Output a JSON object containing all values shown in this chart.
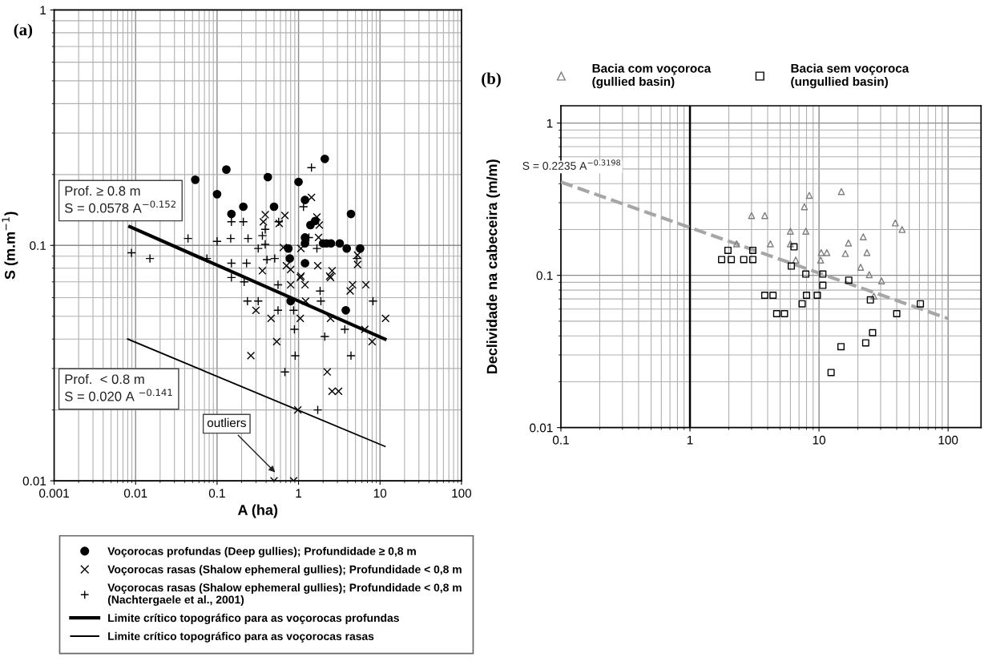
{
  "chart_data": [
    {
      "type": "scatter",
      "title": "(a)",
      "xlabel": "A (ha)",
      "ylabel": "S (m.m$^{−1}$)",
      "log": "xy",
      "xlim": [
        0.001,
        100
      ],
      "ylim": [
        0.01,
        1
      ],
      "xticks": [
        0.001,
        0.01,
        0.1,
        1,
        10,
        100
      ],
      "yticks": [
        0.01,
        0.1,
        1
      ],
      "grid": true,
      "legend": "bottom",
      "annotations": [
        "Prof. ≥ 0.8 m\nS = 0.0578 A$^{−0.152}$",
        "Prof.  < 0.8 m\nS = 0.020 A $^{−0.141}$",
        {
          "text": "outliers",
          "x": 0.54,
          "y": 0.0107
        }
      ],
      "series": [
        {
          "name": "Voçorocas profundas (Deep gullies); Profundidade ≥ 0,8 m",
          "type": "scatter",
          "marker": "circle",
          "color": "#000000",
          "x": [
            0.054,
            0.1,
            0.13,
            0.21,
            0.15,
            0.42,
            0.5,
            1.0,
            2.1,
            1.2,
            4.4,
            1.4,
            1.6,
            1.2,
            1.2,
            2.0,
            2.2,
            2.5,
            3.2,
            3.9,
            5.7,
            0.75,
            0.78,
            1.2,
            0.8,
            3.8
          ],
          "values": [
            0.19,
            0.165,
            0.21,
            0.146,
            0.136,
            0.195,
            0.146,
            0.186,
            0.233,
            0.156,
            0.136,
            0.122,
            0.127,
            0.108,
            0.102,
            0.102,
            0.102,
            0.102,
            0.102,
            0.097,
            0.097,
            0.097,
            0.088,
            0.084,
            0.058,
            0.053
          ]
        },
        {
          "name": "Voçorocas rasas (Shalow ephemeral gullies); Profundidade < 0,8 m",
          "type": "scatter",
          "marker": "cross",
          "color": "#000000",
          "x": [
            1.44,
            0.39,
            0.37,
            0.68,
            0.58,
            1.68,
            1.8,
            1.76,
            0.36,
            0.8,
            1.07,
            1.72,
            2.58,
            2.41,
            5.3,
            5.3,
            1.07,
            0.65,
            0.71,
            1.05,
            0.8,
            1.2,
            2.47,
            4.6,
            6.7,
            4.3,
            1.22,
            0.3,
            0.46,
            1.05,
            2.47,
            11.7,
            6.5,
            8.0,
            0.54,
            0.26,
            2.25,
            2.58,
            3.1,
            0.98,
            0.5,
            0.87
          ],
          "values": [
            0.16,
            0.135,
            0.126,
            0.134,
            0.124,
            0.132,
            0.122,
            0.108,
            0.078,
            0.079,
            0.074,
            0.082,
            0.078,
            0.074,
            0.083,
            0.091,
            0.097,
            0.098,
            0.082,
            0.073,
            0.068,
            0.068,
            0.073,
            0.068,
            0.068,
            0.064,
            0.058,
            0.053,
            0.049,
            0.049,
            0.049,
            0.049,
            0.044,
            0.039,
            0.039,
            0.034,
            0.029,
            0.024,
            0.024,
            0.02,
            0.01,
            0.01
          ]
        },
        {
          "name": "Voçorocas rasas (Shalow ephemeral gullies); Profundidade < 0,8 m\n(Nachtergaele et al., 2001)",
          "type": "scatter",
          "marker": "plus",
          "color": "#000000",
          "x": [
            0.0089,
            0.015,
            0.044,
            0.1,
            0.147,
            0.24,
            0.15,
            0.21,
            0.075,
            0.15,
            0.23,
            0.36,
            0.41,
            1.44,
            1.15,
            0.39,
            0.39,
            0.32,
            0.51,
            0.57,
            1.68,
            1.34,
            5.2,
            0.15,
            0.215,
            0.56,
            0.236,
            0.32,
            0.56,
            0.87,
            1.84,
            1.88,
            8.2,
            0.89,
            2.1,
            3.7,
            0.91,
            4.4,
            0.68,
            1.72
          ],
          "values": [
            0.093,
            0.088,
            0.107,
            0.104,
            0.107,
            0.107,
            0.126,
            0.126,
            0.088,
            0.084,
            0.084,
            0.11,
            0.087,
            0.214,
            0.146,
            0.117,
            0.101,
            0.097,
            0.088,
            0.126,
            0.097,
            0.108,
            0.088,
            0.073,
            0.07,
            0.068,
            0.058,
            0.058,
            0.053,
            0.053,
            0.064,
            0.058,
            0.058,
            0.044,
            0.041,
            0.044,
            0.034,
            0.034,
            0.029,
            0.02
          ]
        },
        {
          "name": "Limite crítico topográfico para as voçorocas profundas",
          "type": "line",
          "marker": "none",
          "line_style": "solid",
          "color": "#000000",
          "x": [
            0.0085,
            11.5
          ],
          "values": [
            0.12,
            0.04
          ]
        },
        {
          "name": "Limite crítico topográfico para as voçorocas rasas",
          "type": "line",
          "marker": "none",
          "line_style": "solid",
          "color": "#000000",
          "x": [
            0.008,
            11.5
          ],
          "values": [
            0.04,
            0.014
          ]
        }
      ]
    },
    {
      "type": "scatter",
      "title": "(b)",
      "ylabel": "Declividade na cabeceira (m/m)",
      "log": "xy",
      "xlim": [
        0.1,
        180
      ],
      "ylim": [
        0.01,
        1.3
      ],
      "xticks": [
        0.1,
        1,
        10,
        100
      ],
      "yticks": [
        0.01,
        0.1,
        1
      ],
      "grid": true,
      "legend": "top",
      "annotations": [
        "S = 0.2235 A$^{−0.3198}$"
      ],
      "ref_lines": [
        {
          "axis": "x",
          "value": 1,
          "color": "#000000"
        }
      ],
      "series": [
        {
          "name": "Bacia com voçoroca\n(gullied basin)",
          "type": "scatter",
          "marker": "triangle",
          "color": "#808080",
          "x": [
            3.0,
            3.8,
            8.4,
            7.7,
            14.9,
            6.0,
            7.9,
            39,
            44,
            2.3,
            4.2,
            6.0,
            16.9,
            22,
            10.4,
            11.5,
            16,
            23.5,
            6.6,
            10.3,
            21,
            24.5,
            30.5,
            26.6
          ],
          "values": [
            0.247,
            0.247,
            0.335,
            0.282,
            0.355,
            0.195,
            0.195,
            0.221,
            0.2,
            0.161,
            0.161,
            0.161,
            0.163,
            0.179,
            0.141,
            0.141,
            0.139,
            0.141,
            0.126,
            0.126,
            0.113,
            0.101,
            0.092,
            0.073
          ]
        },
        {
          "name": "Bacia sem voçoroca\n(ungullied basin)",
          "type": "scatter",
          "marker": "square",
          "color": "#000000",
          "x": [
            1.76,
            2.09,
            1.97,
            2.61,
            3.07,
            3.07,
            6.4,
            6.1,
            7.9,
            10.7,
            10.7,
            17,
            3.8,
            4.4,
            8.0,
            9.7,
            7.4,
            4.7,
            5.4,
            25,
            40,
            61,
            26,
            23,
            14.8,
            12.4
          ],
          "values": [
            0.127,
            0.127,
            0.146,
            0.127,
            0.127,
            0.146,
            0.154,
            0.115,
            0.102,
            0.102,
            0.086,
            0.093,
            0.074,
            0.074,
            0.074,
            0.074,
            0.065,
            0.056,
            0.056,
            0.069,
            0.056,
            0.065,
            0.042,
            0.036,
            0.034,
            0.023
          ]
        },
        {
          "type": "line",
          "marker": "none",
          "line_style": "dashed",
          "color": "#a6a6a6",
          "x": [
            0.1,
            100
          ],
          "values": [
            0.41,
            0.052
          ]
        }
      ]
    }
  ]
}
